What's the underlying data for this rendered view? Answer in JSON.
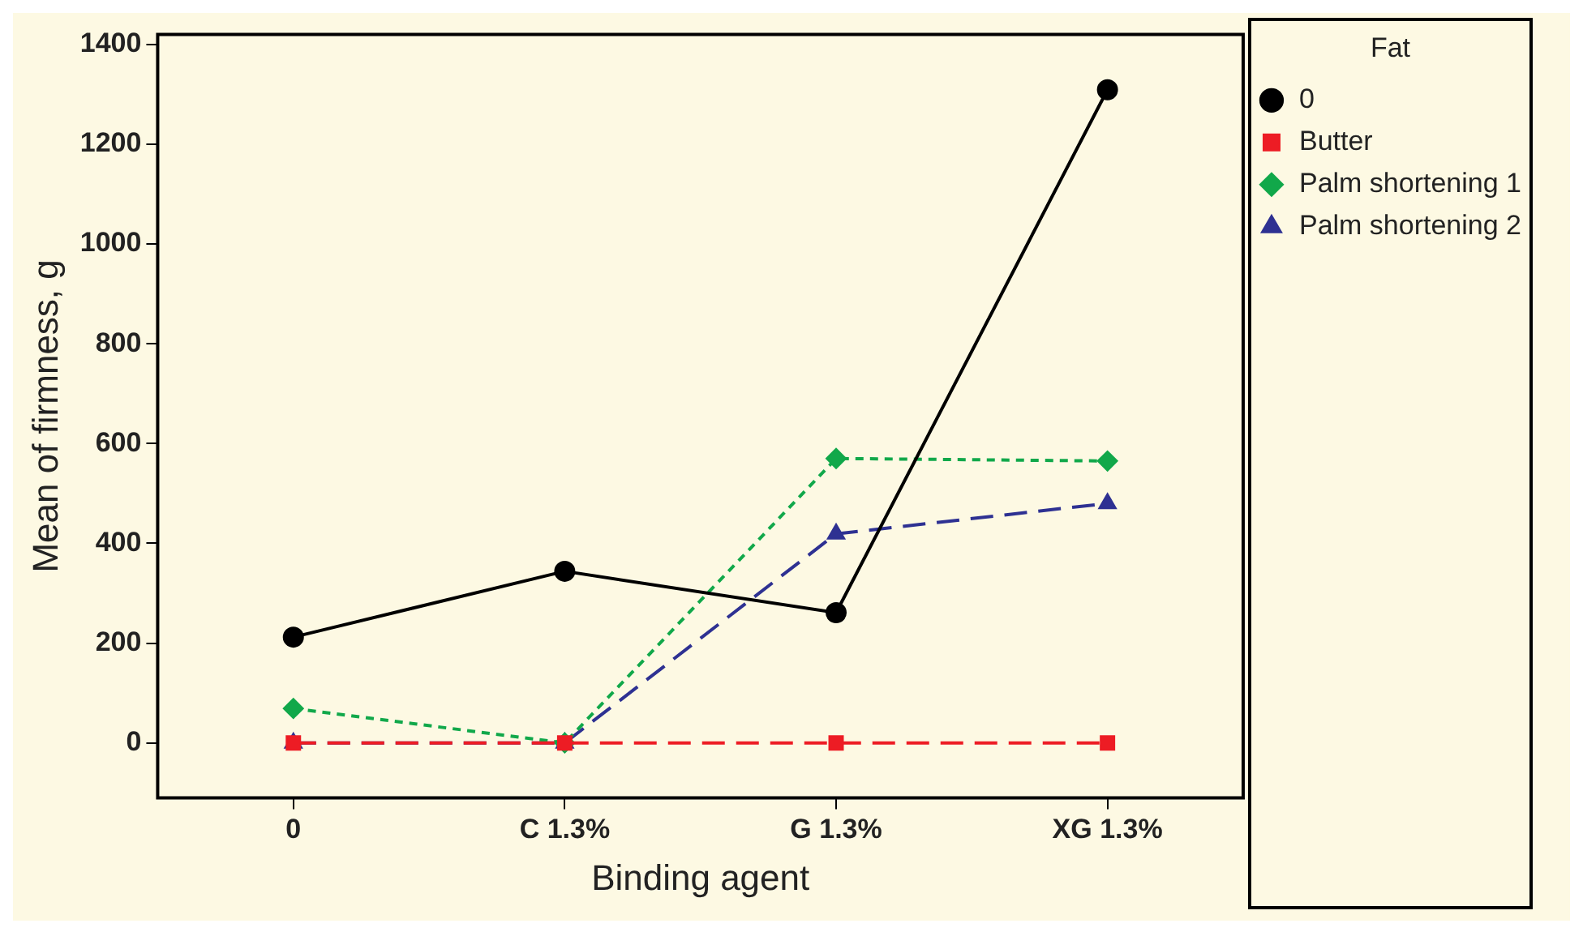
{
  "chart_data": {
    "type": "line",
    "xlabel": "Binding agent",
    "ylabel": "Mean of firmness, g",
    "legend_title": "Fat",
    "legend": "top right",
    "categories": [
      "0",
      "C 1.3%",
      "G 1.3%",
      "XG 1.3%"
    ],
    "ylim": [
      -110,
      1420
    ],
    "yticks": [
      0,
      200,
      400,
      600,
      800,
      1000,
      1200,
      1400
    ],
    "series": [
      {
        "name": "0",
        "color": "#000000",
        "marker": "circle",
        "line_style": "solid",
        "values": [
          212,
          344,
          261,
          1309
        ]
      },
      {
        "name": "Butter",
        "color": "#ed1c24",
        "marker": "square",
        "line_style": "dashed",
        "values": [
          0,
          0,
          0,
          0
        ]
      },
      {
        "name": "Palm shortening 1",
        "color": "#11a84a",
        "marker": "diamond",
        "line_style": "dotted",
        "values": [
          69,
          0,
          570,
          565
        ]
      },
      {
        "name": "Palm shortening 2",
        "color": "#2e3192",
        "marker": "triangle",
        "line_style": "dashed",
        "values": [
          0,
          0,
          419,
          480
        ]
      }
    ]
  }
}
